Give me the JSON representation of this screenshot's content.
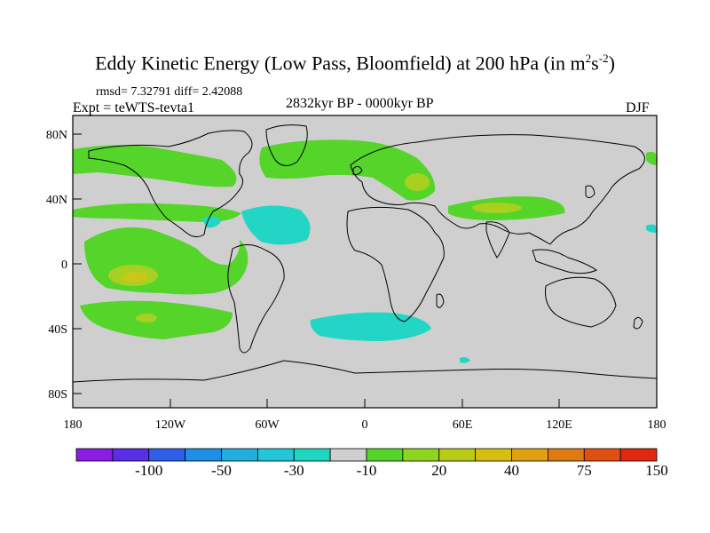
{
  "title": {
    "main": "Eddy Kinetic Energy (Low Pass, Bloomfield) at 200 hPa (in m",
    "unit_exp1": "2",
    "unit_mid": "s",
    "unit_exp2": "-2",
    "unit_close": ")"
  },
  "stats": "rmsd= 7.32791  diff= 2.42088",
  "experiment": "Expt = teWTS-tevta1",
  "period": "2832kyr BP - 0000kyr BP",
  "season": "DJF",
  "y_axis_labels": [
    "80N",
    "40N",
    "0",
    "40S",
    "80S"
  ],
  "x_axis_labels": [
    "180",
    "120W",
    "60W",
    "0",
    "60E",
    "120E",
    "180"
  ],
  "colorbar": {
    "labels": [
      "-100",
      "-50",
      "-30",
      "-10",
      "20",
      "40",
      "75",
      "150"
    ],
    "colors": [
      "#8a1ee0",
      "#5a2ee6",
      "#2f5fe8",
      "#1f8ee8",
      "#1fb0e0",
      "#22c6d6",
      "#1fd6c0",
      "#cfcfcf",
      "#55d42a",
      "#8fd41e",
      "#b8cc14",
      "#d6be10",
      "#e0a010",
      "#e07a10",
      "#e05010",
      "#e02810"
    ]
  },
  "map_colors": {
    "ocean": "#cfcfcf",
    "coast": "#000000",
    "green": "#55d42a",
    "yellow_green": "#a8d020",
    "olive": "#c8c818",
    "cyan": "#22d6c6"
  }
}
